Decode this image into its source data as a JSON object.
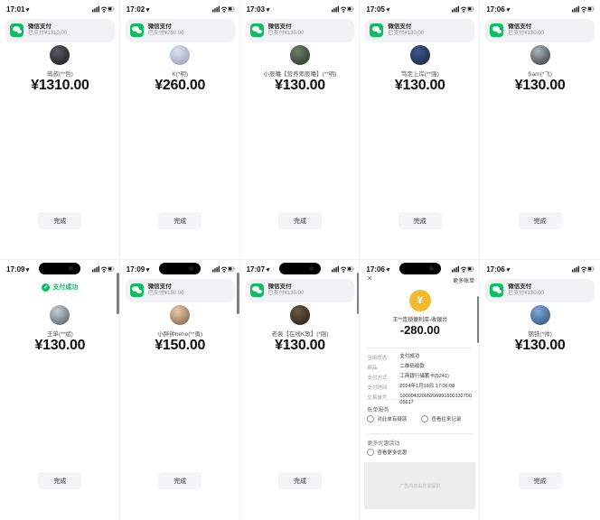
{
  "colors": {
    "wechat_green": "#07C160",
    "receipt_yellow": "#F2BA2E",
    "amount_text": "#121212"
  },
  "done_label": "完成",
  "cards": [
    {
      "type": "payment",
      "time": "17:01",
      "island": false,
      "scrollbar": false,
      "banner": {
        "app": "微信支付",
        "message": "已支付¥1310.00"
      },
      "payee": "萌叔(**哲)",
      "amount": "¥1310.00",
      "avatar_colors": [
        "#5a5a60",
        "#17171a"
      ]
    },
    {
      "type": "payment",
      "time": "17:02",
      "island": false,
      "scrollbar": false,
      "banner": {
        "app": "微信支付",
        "message": "已支付¥260.00"
      },
      "payee": "K(*明)",
      "amount": "¥260.00",
      "avatar_colors": [
        "#dfe2ee",
        "#9398ba"
      ]
    },
    {
      "type": "payment",
      "time": "17:03",
      "island": false,
      "scrollbar": false,
      "banner": {
        "app": "微信支付",
        "message": "已支付¥130.00"
      },
      "payee": "小辰曦【营养师辰曦】(**明)",
      "amount": "¥130.00",
      "avatar_colors": [
        "#6f7f6a",
        "#26302a"
      ]
    },
    {
      "type": "payment",
      "time": "17:05",
      "island": false,
      "scrollbar": false,
      "banner": {
        "app": "微信支付",
        "message": "已支付¥130.00"
      },
      "payee": "笃定上岸(**强)",
      "amount": "¥130.00",
      "avatar_colors": [
        "#3d5a8a",
        "#16233c"
      ]
    },
    {
      "type": "payment",
      "time": "17:06",
      "island": false,
      "scrollbar": false,
      "banner": {
        "app": "微信支付",
        "message": "已支付¥130.00"
      },
      "payee": "Sam(*飞)",
      "amount": "¥130.00",
      "avatar_colors": [
        "#aeb3ba",
        "#2f3338"
      ]
    },
    {
      "type": "success",
      "time": "17:09",
      "island": true,
      "scrollbar": true,
      "status": "支付成功",
      "payee": "王单(**斌)",
      "amount": "¥130.00",
      "avatar_colors": [
        "#c9ced6",
        "#4d5560"
      ]
    },
    {
      "type": "payment",
      "time": "17:09",
      "island": true,
      "scrollbar": true,
      "banner": {
        "app": "微信支付",
        "message": "已支付¥150.00"
      },
      "payee": "小胖钟hehe(**勇)",
      "amount": "¥150.00",
      "avatar_colors": [
        "#e8c9a8",
        "#7a5b43"
      ]
    },
    {
      "type": "payment",
      "time": "17:07",
      "island": true,
      "scrollbar": true,
      "banner": {
        "app": "微信支付",
        "message": "已支付¥130.00"
      },
      "payee": "老裴【在线K歌】(*刚)",
      "amount": "¥130.00",
      "avatar_colors": [
        "#6d5845",
        "#201a14"
      ]
    },
    {
      "type": "receipt",
      "time": "17:06",
      "island": true,
      "scrollbar": true,
      "close_icon": "×",
      "more_label": "更多账单",
      "merchant": "王**连锁便利店-收银台",
      "amount": "-280.00",
      "details": [
        {
          "label": "当前状态",
          "value": "支付成功"
        },
        {
          "label": "商品",
          "value": "二维码收款"
        },
        {
          "label": "支付方式",
          "value": "工商银行储蓄卡(5241)"
        },
        {
          "label": "支付时间",
          "value": "2024年1月16日 17:06:08"
        },
        {
          "label": "交易单号",
          "value": "1000043200520099150013270005617"
        }
      ],
      "services_title": "账单服务",
      "services": [
        "对此单有疑惑",
        "查看往来记录"
      ],
      "promo_title": "更多优惠活动",
      "promo_item": "查看更多优惠",
      "ad_text": "广告内容由商家提供"
    },
    {
      "type": "payment",
      "time": "17:06",
      "island": false,
      "scrollbar": false,
      "banner": {
        "app": "微信支付",
        "message": "已支付¥130.00"
      },
      "payee": "钢铁(*帅)",
      "amount": "¥130.00",
      "avatar_colors": [
        "#7fa8d9",
        "#2f4a73"
      ]
    }
  ]
}
